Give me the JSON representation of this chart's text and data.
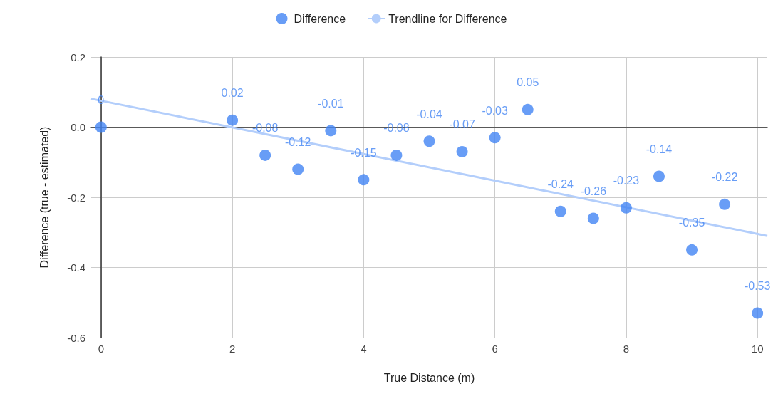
{
  "chart_data": {
    "type": "scatter",
    "xlabel": "True Distance (m)",
    "ylabel": "Difference (true - estimated)",
    "xlim": [
      -0.15,
      10.15
    ],
    "xticks": [
      0,
      2,
      4,
      6,
      8,
      10
    ],
    "ylim": [
      -0.6,
      0.2
    ],
    "yticks": [
      {
        "value": -0.6,
        "label": "-0.6"
      },
      {
        "value": -0.4,
        "label": "-0.4"
      },
      {
        "value": -0.2,
        "label": "-0.2"
      },
      {
        "value": 0,
        "label": "0.0"
      },
      {
        "value": 0.2,
        "label": "0.2"
      }
    ],
    "grid": true,
    "legend": "top",
    "series": [
      {
        "name": "Difference",
        "marker": "circle",
        "color": "#4285f4",
        "x": [
          0,
          2,
          2.5,
          3,
          3.5,
          4,
          4.5,
          5,
          5.5,
          6,
          6.5,
          7,
          7.5,
          8,
          8.5,
          9,
          9.5,
          10
        ],
        "values": [
          0,
          0.02,
          -0.08,
          -0.12,
          -0.01,
          -0.15,
          -0.08,
          -0.04,
          -0.07,
          -0.03,
          0.05,
          -0.24,
          -0.26,
          -0.23,
          -0.14,
          -0.35,
          -0.22,
          -0.53
        ],
        "value_labels": [
          "0",
          "0.02",
          "-0.08",
          "-0.12",
          "-0.01",
          "-0.15",
          "-0.08",
          "-0.04",
          "-0.07",
          "-0.03",
          "0.05",
          "-0.24",
          "-0.26",
          "-0.23",
          "-0.14",
          "-0.35",
          "-0.22",
          "-0.53"
        ]
      },
      {
        "name": "Trendline for Difference",
        "type": "line",
        "marker": "none",
        "color": "#b3cefb",
        "x": [
          -0.15,
          10.15
        ],
        "values": [
          0.081,
          -0.31
        ]
      }
    ]
  }
}
